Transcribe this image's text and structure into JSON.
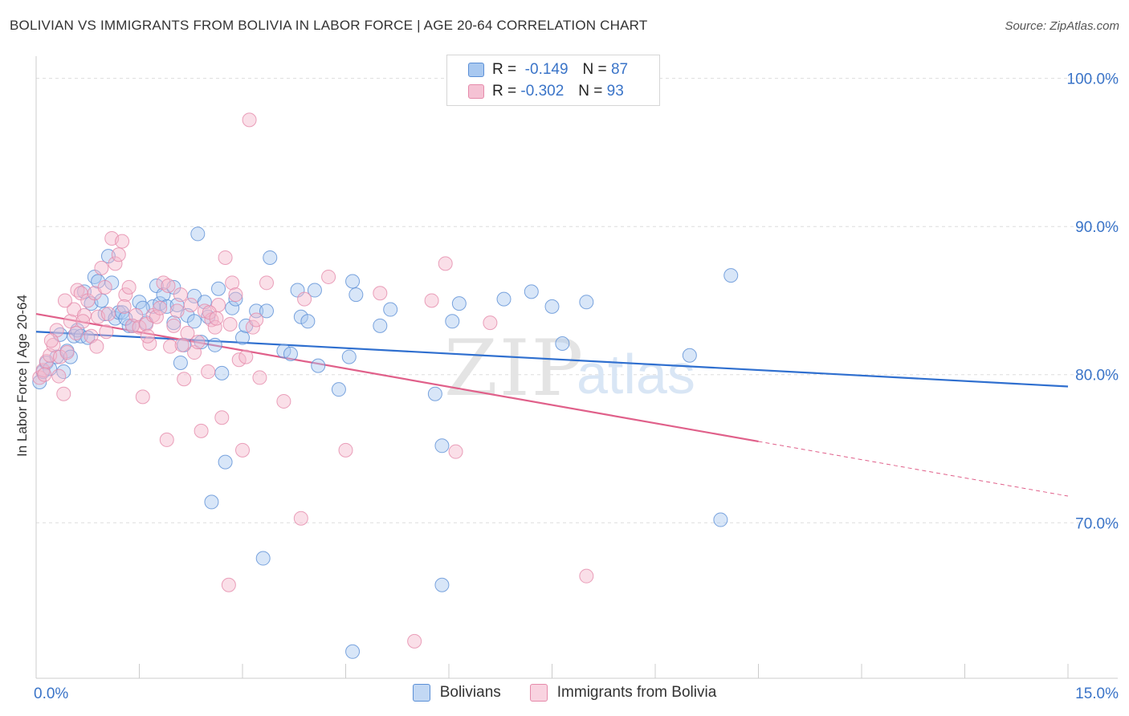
{
  "title": "BOLIVIAN VS IMMIGRANTS FROM BOLIVIA IN LABOR FORCE | AGE 20-64 CORRELATION CHART",
  "source": "Source: ZipAtlas.com",
  "watermark": {
    "zip": "ZIP",
    "atlas": "atlas"
  },
  "legend": {
    "rows": [
      {
        "r_label": "R =",
        "r_value": "-0.149",
        "n_label": "N =",
        "n_value": "87"
      },
      {
        "r_label": "R =",
        "r_value": "-0.302",
        "n_label": "N =",
        "n_value": "93"
      }
    ],
    "bottom": [
      "Bolivians",
      "Immigrants from Bolivia"
    ]
  },
  "colors": {
    "blue_fill": "#a8c8f0",
    "blue_stroke": "#5b8fd6",
    "blue_line": "#2f6fcf",
    "pink_fill": "#f5b8cc",
    "pink_stroke": "#e58aaa",
    "pink_line": "#e0608a",
    "tick_text": "#3a74c8",
    "grid": "#dddddd"
  },
  "chart_data": {
    "type": "scatter",
    "title": "BOLIVIAN VS IMMIGRANTS FROM BOLIVIA IN LABOR FORCE | AGE 20-64 CORRELATION CHART",
    "xlabel": "",
    "ylabel": "In Labor Force | Age 20-64",
    "xlim": [
      0,
      15
    ],
    "ylim": [
      59.5,
      101.5
    ],
    "x_tick_labels": [
      "0.0%",
      "15.0%"
    ],
    "y_ticks": [
      70,
      80,
      90,
      100
    ],
    "y_tick_labels": [
      "70.0%",
      "80.0%",
      "90.0%",
      "100.0%"
    ],
    "series": [
      {
        "name": "Bolivians",
        "color": "blue",
        "trend": {
          "x0": 0,
          "y0": 82.9,
          "x1": 15,
          "y1": 79.2,
          "solid_to": 15
        },
        "points": [
          [
            0.05,
            79.5
          ],
          [
            0.1,
            80.2
          ],
          [
            0.15,
            80.8
          ],
          [
            0.2,
            80.4
          ],
          [
            0.3,
            81.2
          ],
          [
            0.35,
            82.7
          ],
          [
            0.4,
            80.2
          ],
          [
            0.45,
            81.6
          ],
          [
            0.5,
            81.2
          ],
          [
            0.55,
            82.6
          ],
          [
            0.6,
            83.0
          ],
          [
            0.65,
            82.6
          ],
          [
            0.7,
            85.6
          ],
          [
            0.8,
            84.8
          ],
          [
            0.85,
            86.6
          ],
          [
            0.9,
            86.3
          ],
          [
            1.0,
            84.1
          ],
          [
            1.05,
            88.0
          ],
          [
            1.15,
            83.8
          ],
          [
            1.2,
            84.2
          ],
          [
            1.25,
            84.2
          ],
          [
            1.35,
            83.3
          ],
          [
            1.4,
            83.3
          ],
          [
            1.5,
            84.9
          ],
          [
            1.6,
            83.5
          ],
          [
            1.7,
            84.6
          ],
          [
            1.75,
            86.0
          ],
          [
            1.8,
            84.8
          ],
          [
            1.85,
            85.4
          ],
          [
            1.9,
            84.6
          ],
          [
            2.0,
            83.5
          ],
          [
            2.05,
            84.7
          ],
          [
            2.1,
            80.8
          ],
          [
            2.15,
            82.0
          ],
          [
            2.2,
            84.0
          ],
          [
            2.3,
            85.3
          ],
          [
            2.35,
            89.5
          ],
          [
            2.4,
            82.2
          ],
          [
            2.45,
            84.9
          ],
          [
            2.5,
            83.9
          ],
          [
            2.55,
            71.4
          ],
          [
            2.65,
            85.8
          ],
          [
            2.7,
            80.1
          ],
          [
            2.75,
            74.1
          ],
          [
            2.85,
            84.5
          ],
          [
            2.9,
            85.1
          ],
          [
            3.0,
            82.5
          ],
          [
            3.05,
            83.3
          ],
          [
            3.2,
            84.3
          ],
          [
            3.3,
            67.6
          ],
          [
            3.35,
            84.3
          ],
          [
            3.4,
            87.9
          ],
          [
            3.6,
            81.6
          ],
          [
            3.8,
            85.7
          ],
          [
            3.85,
            83.9
          ],
          [
            3.95,
            83.6
          ],
          [
            4.05,
            85.7
          ],
          [
            4.1,
            80.6
          ],
          [
            4.4,
            79.0
          ],
          [
            4.55,
            81.2
          ],
          [
            4.6,
            86.3
          ],
          [
            4.65,
            85.4
          ],
          [
            4.6,
            61.3
          ],
          [
            5.0,
            83.3
          ],
          [
            5.15,
            84.4
          ],
          [
            5.8,
            78.7
          ],
          [
            5.9,
            75.2
          ],
          [
            5.9,
            65.8
          ],
          [
            6.05,
            83.6
          ],
          [
            6.15,
            84.8
          ],
          [
            6.8,
            85.1
          ],
          [
            7.2,
            85.6
          ],
          [
            7.5,
            84.6
          ],
          [
            7.65,
            82.1
          ],
          [
            8.0,
            84.9
          ],
          [
            9.5,
            81.3
          ],
          [
            9.95,
            70.2
          ],
          [
            10.1,
            86.7
          ],
          [
            2.3,
            83.6
          ],
          [
            1.1,
            86.2
          ],
          [
            0.75,
            82.5
          ],
          [
            1.3,
            83.8
          ],
          [
            3.7,
            81.4
          ],
          [
            2.0,
            85.9
          ],
          [
            1.55,
            84.5
          ],
          [
            0.95,
            85.0
          ],
          [
            2.6,
            82.0
          ]
        ]
      },
      {
        "name": "Immigrants from Bolivia",
        "color": "pink",
        "trend": {
          "x0": 0,
          "y0": 84.1,
          "x1": 15,
          "y1": 71.8,
          "solid_to": 10.5
        },
        "points": [
          [
            0.05,
            79.8
          ],
          [
            0.1,
            80.3
          ],
          [
            0.15,
            80.9
          ],
          [
            0.2,
            81.3
          ],
          [
            0.25,
            82.0
          ],
          [
            0.3,
            83.0
          ],
          [
            0.35,
            81.2
          ],
          [
            0.4,
            78.7
          ],
          [
            0.45,
            81.5
          ],
          [
            0.5,
            83.6
          ],
          [
            0.55,
            84.4
          ],
          [
            0.6,
            85.7
          ],
          [
            0.65,
            85.5
          ],
          [
            0.7,
            84.0
          ],
          [
            0.75,
            85.0
          ],
          [
            0.8,
            82.6
          ],
          [
            0.85,
            85.5
          ],
          [
            0.9,
            83.9
          ],
          [
            0.95,
            87.2
          ],
          [
            1.0,
            85.9
          ],
          [
            1.05,
            84.1
          ],
          [
            1.1,
            89.2
          ],
          [
            1.15,
            87.5
          ],
          [
            1.2,
            88.1
          ],
          [
            1.25,
            89.0
          ],
          [
            1.3,
            85.4
          ],
          [
            1.35,
            85.9
          ],
          [
            1.4,
            83.3
          ],
          [
            1.45,
            84.0
          ],
          [
            1.5,
            83.2
          ],
          [
            1.55,
            78.5
          ],
          [
            1.6,
            83.4
          ],
          [
            1.65,
            82.1
          ],
          [
            1.7,
            84.0
          ],
          [
            1.75,
            83.9
          ],
          [
            1.8,
            84.5
          ],
          [
            1.85,
            86.2
          ],
          [
            1.9,
            75.6
          ],
          [
            1.95,
            81.9
          ],
          [
            2.0,
            83.3
          ],
          [
            2.05,
            84.3
          ],
          [
            2.1,
            85.4
          ],
          [
            2.15,
            79.7
          ],
          [
            2.2,
            82.8
          ],
          [
            2.25,
            84.7
          ],
          [
            2.3,
            81.5
          ],
          [
            2.35,
            82.2
          ],
          [
            2.4,
            76.2
          ],
          [
            2.45,
            84.3
          ],
          [
            2.5,
            80.2
          ],
          [
            2.55,
            83.7
          ],
          [
            2.6,
            83.2
          ],
          [
            2.65,
            84.7
          ],
          [
            2.7,
            77.1
          ],
          [
            2.75,
            87.9
          ],
          [
            2.8,
            65.8
          ],
          [
            2.85,
            86.2
          ],
          [
            2.9,
            85.4
          ],
          [
            2.95,
            81.0
          ],
          [
            3.0,
            74.9
          ],
          [
            3.05,
            81.2
          ],
          [
            3.1,
            97.2
          ],
          [
            3.15,
            83.2
          ],
          [
            3.2,
            83.7
          ],
          [
            3.25,
            79.8
          ],
          [
            3.35,
            86.2
          ],
          [
            3.6,
            78.2
          ],
          [
            3.85,
            70.3
          ],
          [
            3.9,
            85.1
          ],
          [
            4.25,
            86.6
          ],
          [
            4.5,
            74.9
          ],
          [
            5.0,
            85.5
          ],
          [
            5.5,
            62.0
          ],
          [
            5.75,
            85.0
          ],
          [
            5.95,
            87.5
          ],
          [
            6.1,
            74.8
          ],
          [
            6.6,
            83.5
          ],
          [
            8.0,
            66.4
          ],
          [
            0.12,
            80.0
          ],
          [
            0.22,
            82.3
          ],
          [
            0.33,
            79.9
          ],
          [
            0.58,
            82.8
          ],
          [
            0.68,
            83.6
          ],
          [
            0.88,
            81.9
          ],
          [
            1.02,
            82.9
          ],
          [
            1.62,
            82.6
          ],
          [
            1.92,
            86.0
          ],
          [
            2.12,
            82.0
          ],
          [
            2.52,
            84.2
          ],
          [
            2.82,
            83.4
          ],
          [
            0.42,
            85.0
          ],
          [
            1.28,
            84.6
          ],
          [
            2.62,
            83.8
          ]
        ]
      }
    ]
  }
}
